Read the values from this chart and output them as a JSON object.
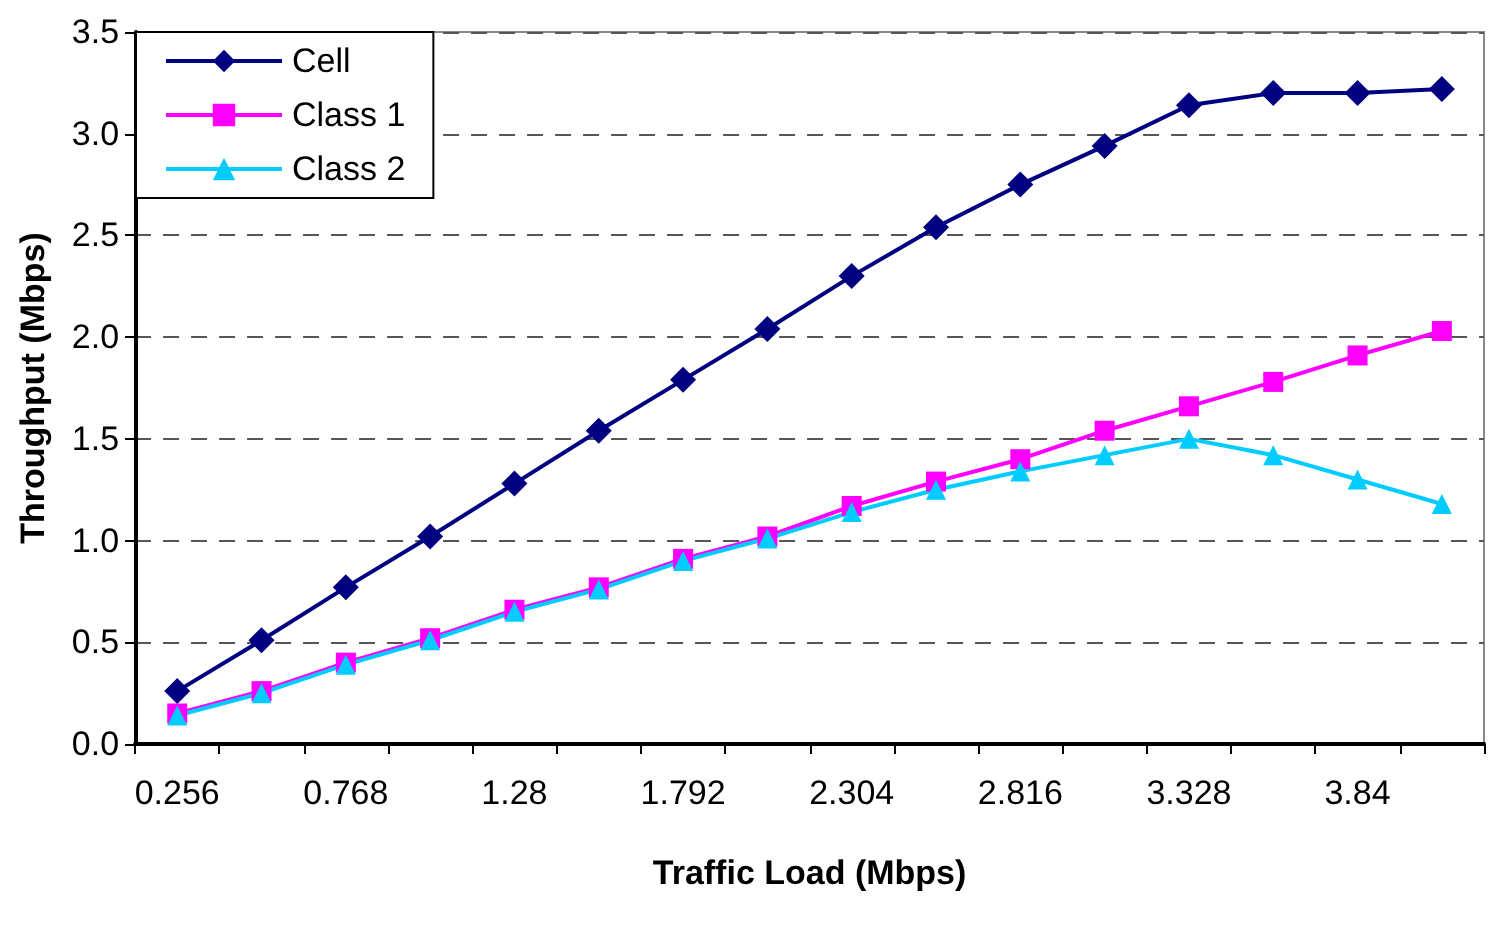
{
  "chart_data": {
    "type": "line",
    "xlabel": "Traffic Load (Mbps)",
    "ylabel": "Throughput (Mbps)",
    "categories": [
      "0.256",
      null,
      "0.768",
      null,
      "1.28",
      null,
      "1.792",
      null,
      "2.304",
      null,
      "2.816",
      null,
      "3.328",
      null,
      "3.84",
      null
    ],
    "series": [
      {
        "name": "Cell",
        "color": "#000080",
        "marker": "diamond",
        "values": [
          0.26,
          0.51,
          0.77,
          1.02,
          1.28,
          1.54,
          1.79,
          2.04,
          2.3,
          2.54,
          2.75,
          2.94,
          3.14,
          3.2,
          3.2,
          3.22
        ]
      },
      {
        "name": "Class 1",
        "color": "#ff00ff",
        "marker": "square",
        "values": [
          0.15,
          0.26,
          0.4,
          0.52,
          0.66,
          0.77,
          0.91,
          1.02,
          1.17,
          1.29,
          1.4,
          1.54,
          1.66,
          1.78,
          1.91,
          2.03
        ]
      },
      {
        "name": "Class 2",
        "color": "#00ccff",
        "marker": "triangle",
        "values": [
          0.14,
          0.25,
          0.39,
          0.51,
          0.65,
          0.76,
          0.9,
          1.01,
          1.14,
          1.25,
          1.34,
          1.42,
          1.5,
          1.42,
          1.3,
          1.18
        ]
      }
    ],
    "ylim": [
      0,
      3.5
    ],
    "yticks": [
      {
        "value": 0,
        "label": "0.0"
      },
      {
        "value": 0.5,
        "label": "0.5"
      },
      {
        "value": 1,
        "label": "1.0"
      },
      {
        "value": 1.5,
        "label": "1.5"
      },
      {
        "value": 2,
        "label": "2.0"
      },
      {
        "value": 2.5,
        "label": "2.5"
      },
      {
        "value": 3,
        "label": "3.0"
      },
      {
        "value": 3.5,
        "label": "3.5"
      }
    ],
    "grid": "y",
    "legend": "top left",
    "line_style": "solid"
  }
}
